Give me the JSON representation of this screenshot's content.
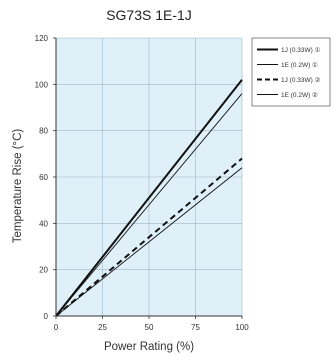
{
  "chart_data": {
    "type": "line",
    "title": "SG73S 1E-1J",
    "xlabel": "Power Rating (%)",
    "ylabel": "Temperature Rise (°C)",
    "xlim": [
      0,
      100
    ],
    "ylim": [
      0,
      120
    ],
    "xticks": [
      "0",
      "25",
      "50",
      "75",
      "100"
    ],
    "yticks": [
      "0",
      "20",
      "40",
      "60",
      "80",
      "100",
      "120"
    ],
    "grid": true,
    "plot_background": "#dff0f9",
    "line_color": "#111111",
    "legend_position": "outside-right",
    "series": [
      {
        "name": "1J (0.33W) ①",
        "style": "solid-thick",
        "x": [
          0,
          100
        ],
        "y": [
          0,
          102
        ]
      },
      {
        "name": "1E (0.2W) ①",
        "style": "solid-thin",
        "x": [
          0,
          100
        ],
        "y": [
          0,
          96
        ]
      },
      {
        "name": "1J (0.33W) ②",
        "style": "dashed-thick",
        "x": [
          0,
          100
        ],
        "y": [
          0,
          68
        ]
      },
      {
        "name": "1E (0.2W) ②",
        "style": "solid-thin",
        "x": [
          0,
          100
        ],
        "y": [
          0,
          64
        ]
      }
    ]
  }
}
